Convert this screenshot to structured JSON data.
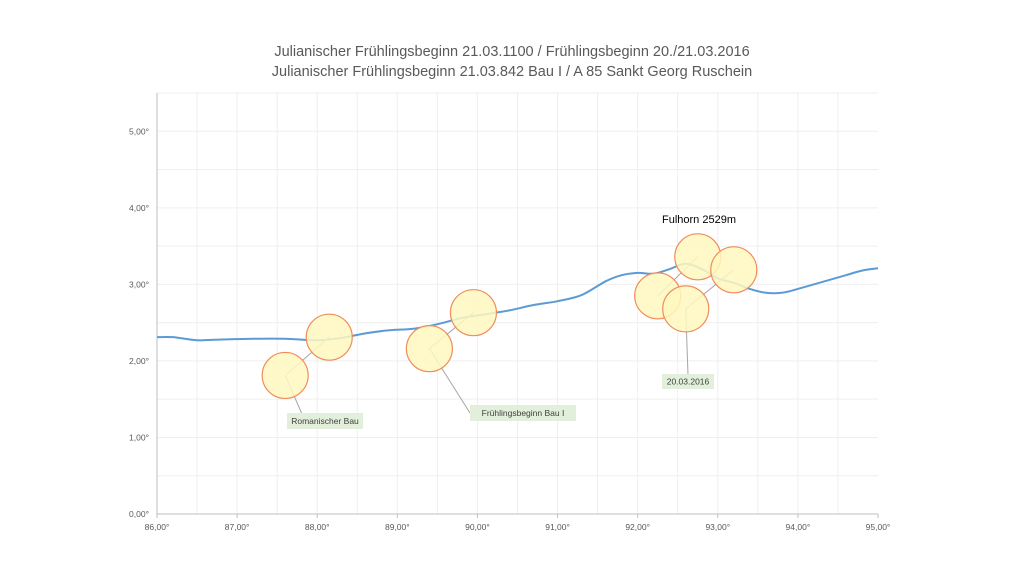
{
  "title_line1": "Julianischer Frühlingsbeginn 21.03.1100    /  Frühlingsbeginn 20./21.03.2016",
  "title_line2": "Julianischer Frühlingsbeginn 21.03.842 Bau I / A 85 Sankt Georg Ruschein",
  "chart_data": {
    "type": "line",
    "xlim": [
      86,
      95
    ],
    "ylim": [
      0,
      5.5
    ],
    "x_ticks": [
      86,
      87,
      88,
      89,
      90,
      91,
      92,
      93,
      94,
      95
    ],
    "x_tick_labels": [
      "86,00°",
      "87,00°",
      "88,00°",
      "89,00°",
      "90,00°",
      "91,00°",
      "92,00°",
      "93,00°",
      "94,00°",
      "95,00°"
    ],
    "y_ticks": [
      0,
      1,
      2,
      3,
      4,
      5
    ],
    "y_tick_labels": [
      "0,00°",
      "1,00°",
      "2,00°",
      "3,00°",
      "4,00°",
      "5,00°"
    ],
    "grid": true,
    "series": [
      {
        "color": "#5b9bd5",
        "x": [
          86.0,
          86.2,
          86.5,
          86.8,
          87.2,
          87.6,
          88.0,
          88.3,
          88.6,
          88.9,
          89.2,
          89.5,
          89.8,
          90.1,
          90.4,
          90.7,
          91.0,
          91.3,
          91.6,
          91.8,
          92.0,
          92.2,
          92.4,
          92.6,
          92.8,
          93.0,
          93.2,
          93.4,
          93.6,
          93.8,
          94.0,
          94.3,
          94.6,
          94.8,
          95.0
        ],
        "y": [
          2.31,
          2.31,
          2.27,
          2.28,
          2.29,
          2.29,
          2.27,
          2.3,
          2.36,
          2.4,
          2.42,
          2.48,
          2.56,
          2.61,
          2.66,
          2.73,
          2.78,
          2.86,
          3.04,
          3.12,
          3.15,
          3.14,
          3.2,
          3.27,
          3.2,
          3.08,
          3.02,
          2.94,
          2.89,
          2.89,
          2.94,
          3.03,
          3.12,
          3.18,
          3.21
        ]
      }
    ],
    "markers": [
      {
        "x": 87.6,
        "y": 1.81
      },
      {
        "x": 88.15,
        "y": 2.31
      },
      {
        "x": 89.4,
        "y": 2.16
      },
      {
        "x": 89.95,
        "y": 2.63
      },
      {
        "x": 92.25,
        "y": 2.85
      },
      {
        "x": 92.6,
        "y": 2.68
      },
      {
        "x": 92.75,
        "y": 3.36
      },
      {
        "x": 93.2,
        "y": 3.19
      }
    ],
    "annotations": {
      "peak": {
        "text": "Fulhorn 2529m"
      },
      "label1": {
        "text": "Romanischer Bau"
      },
      "label2": {
        "text": "Frühlingsbeginn Bau I"
      },
      "label3": {
        "text": "20.03.2016"
      }
    }
  }
}
